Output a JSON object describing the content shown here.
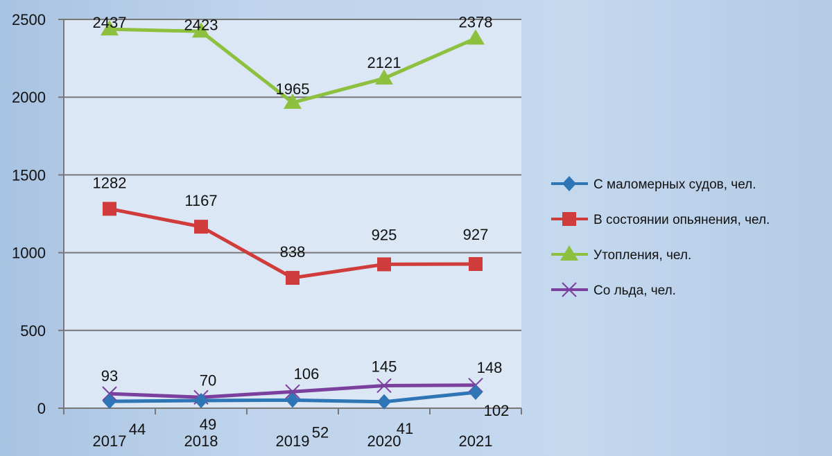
{
  "chart_data": {
    "type": "line",
    "title": "",
    "xlabel": "",
    "ylabel": "",
    "categories": [
      "2017",
      "2018",
      "2019",
      "2020",
      "2021"
    ],
    "ylim": [
      0,
      2500
    ],
    "yticks": [
      0,
      500,
      1000,
      1500,
      2000,
      2500
    ],
    "grid": true,
    "legend_position": "right",
    "series": [
      {
        "name": "С маломерных судов, чел.",
        "color": "#2e75b6",
        "marker": "diamond",
        "values": [
          44,
          49,
          52,
          41,
          102
        ]
      },
      {
        "name": "В состоянии опьянения, чел.",
        "color": "#d03b3b",
        "marker": "square",
        "values": [
          1282,
          1167,
          838,
          925,
          927
        ]
      },
      {
        "name": "Утопления, чел.",
        "color": "#8dc03f",
        "marker": "triangle",
        "values": [
          2437,
          2423,
          1965,
          2121,
          2378
        ]
      },
      {
        "name": "Со льда, чел.",
        "color": "#7b3f9e",
        "marker": "x",
        "values": [
          93,
          70,
          106,
          145,
          148
        ]
      }
    ]
  }
}
